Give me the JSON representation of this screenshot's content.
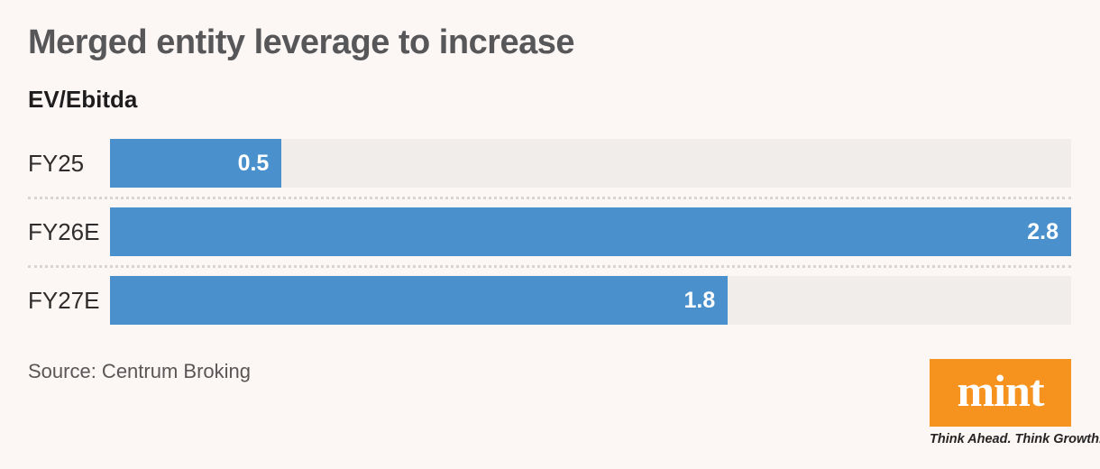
{
  "chart": {
    "title": "Merged entity leverage to increase",
    "subtitle": "EV/Ebitda",
    "source": "Source: Centrum Broking"
  },
  "chart_data": {
    "type": "bar",
    "orientation": "horizontal",
    "title": "Merged entity leverage to increase",
    "subtitle": "EV/Ebitda",
    "categories": [
      "FY25",
      "FY26E",
      "FY27E"
    ],
    "values": [
      0.5,
      2.8,
      1.8
    ],
    "value_labels": [
      "0.5",
      "2.8",
      "1.8"
    ],
    "xlim": [
      0,
      2.8
    ],
    "grid": false,
    "legend": "none",
    "bar_color": "#4A90CC",
    "track_color": "#F0EDEA",
    "source": "Source: Centrum Broking"
  },
  "brand": {
    "logo_text": "mint",
    "tagline": "Think Ahead. Think Growth.",
    "logo_color": "#F6921E"
  }
}
